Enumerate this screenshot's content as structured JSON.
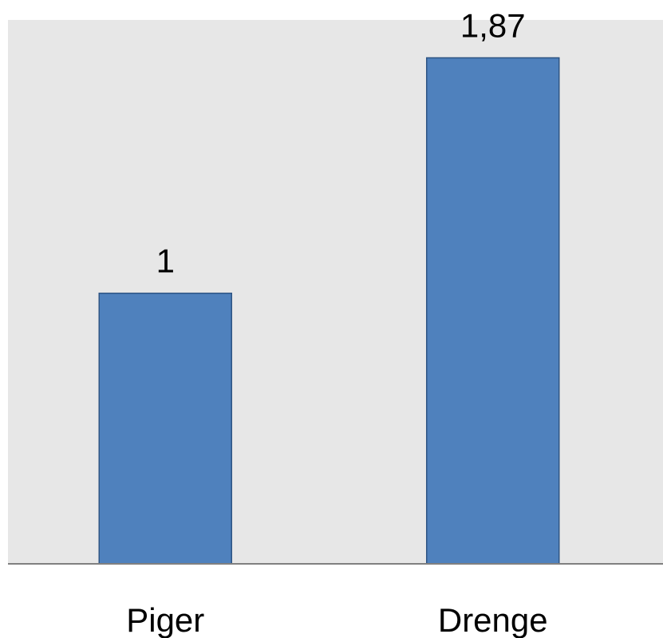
{
  "chart_data": {
    "type": "bar",
    "categories": [
      "Piger",
      "Drenge"
    ],
    "values": [
      1,
      1.87
    ],
    "value_labels": [
      "1",
      "1,87"
    ],
    "ylim": [
      0,
      2.01
    ],
    "grid": false,
    "legend": "none",
    "colors": {
      "plot_background": "#e7e7e7",
      "bar_fill": "#4f81bd",
      "bar_stroke": "#2f5584",
      "axis_line": "#808080"
    }
  }
}
